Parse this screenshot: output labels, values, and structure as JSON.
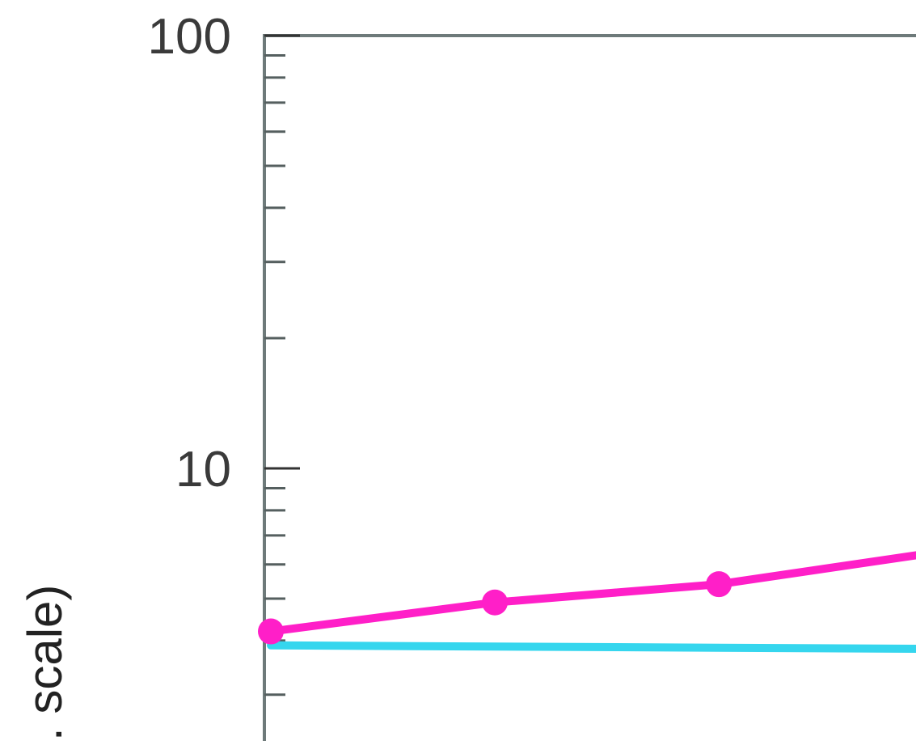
{
  "chart_data": {
    "type": "line",
    "title": "",
    "xlabel": "",
    "ylabel": ". scale)",
    "y_scale": "log",
    "ylim": [
      2.2,
      100
    ],
    "xlim": [
      0,
      2.88
    ],
    "y_tick_labels": [
      {
        "value": 100,
        "label": "100"
      },
      {
        "value": 10,
        "label": "10"
      }
    ],
    "y_minor_ticks": [
      3,
      4,
      5,
      6,
      7,
      8,
      9,
      20,
      30,
      40,
      50,
      60,
      70,
      80,
      90
    ],
    "grid": false,
    "legend": "none",
    "series": [
      {
        "color": "#ff1fc8",
        "markers": true,
        "points": [
          {
            "x": 0,
            "y": 4.2
          },
          {
            "x": 1,
            "y": 4.9
          },
          {
            "x": 2,
            "y": 5.4
          },
          {
            "x": 2.88,
            "y": 6.3
          }
        ]
      },
      {
        "color": "#35d6ee",
        "markers": false,
        "points": [
          {
            "x": 0,
            "y": 3.9
          },
          {
            "x": 2.88,
            "y": 3.83
          }
        ]
      }
    ]
  }
}
